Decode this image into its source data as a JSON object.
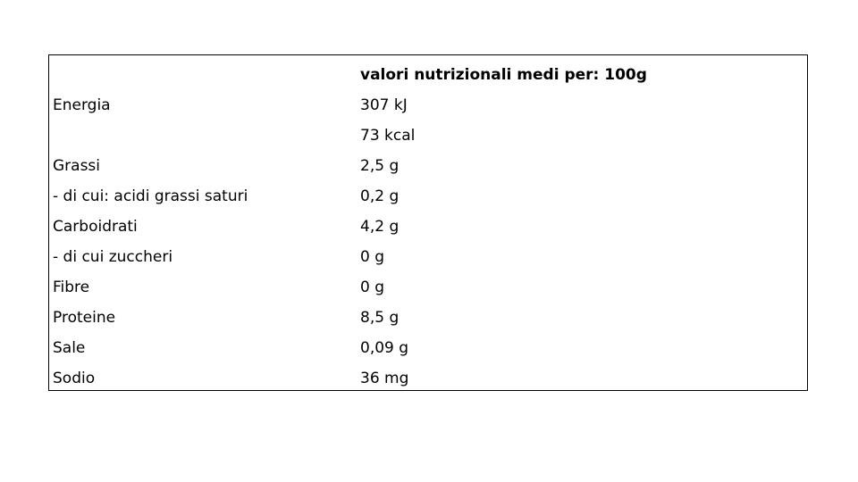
{
  "table": {
    "header": [
      "",
      "valori nutrizionali medi per: 100g"
    ],
    "rows": [
      [
        "Energia",
        "307 kJ"
      ],
      [
        "",
        "73 kcal"
      ],
      [
        "Grassi",
        "2,5 g"
      ],
      [
        "- di cui: acidi grassi saturi",
        "0,2 g"
      ],
      [
        "Carboidrati",
        "4,2 g"
      ],
      [
        "- di cui zuccheri",
        "0 g"
      ],
      [
        "Fibre",
        "0 g"
      ],
      [
        "Proteine",
        "8,5 g"
      ],
      [
        "Sale",
        "0,09 g"
      ],
      [
        "Sodio",
        "36 mg"
      ]
    ]
  }
}
